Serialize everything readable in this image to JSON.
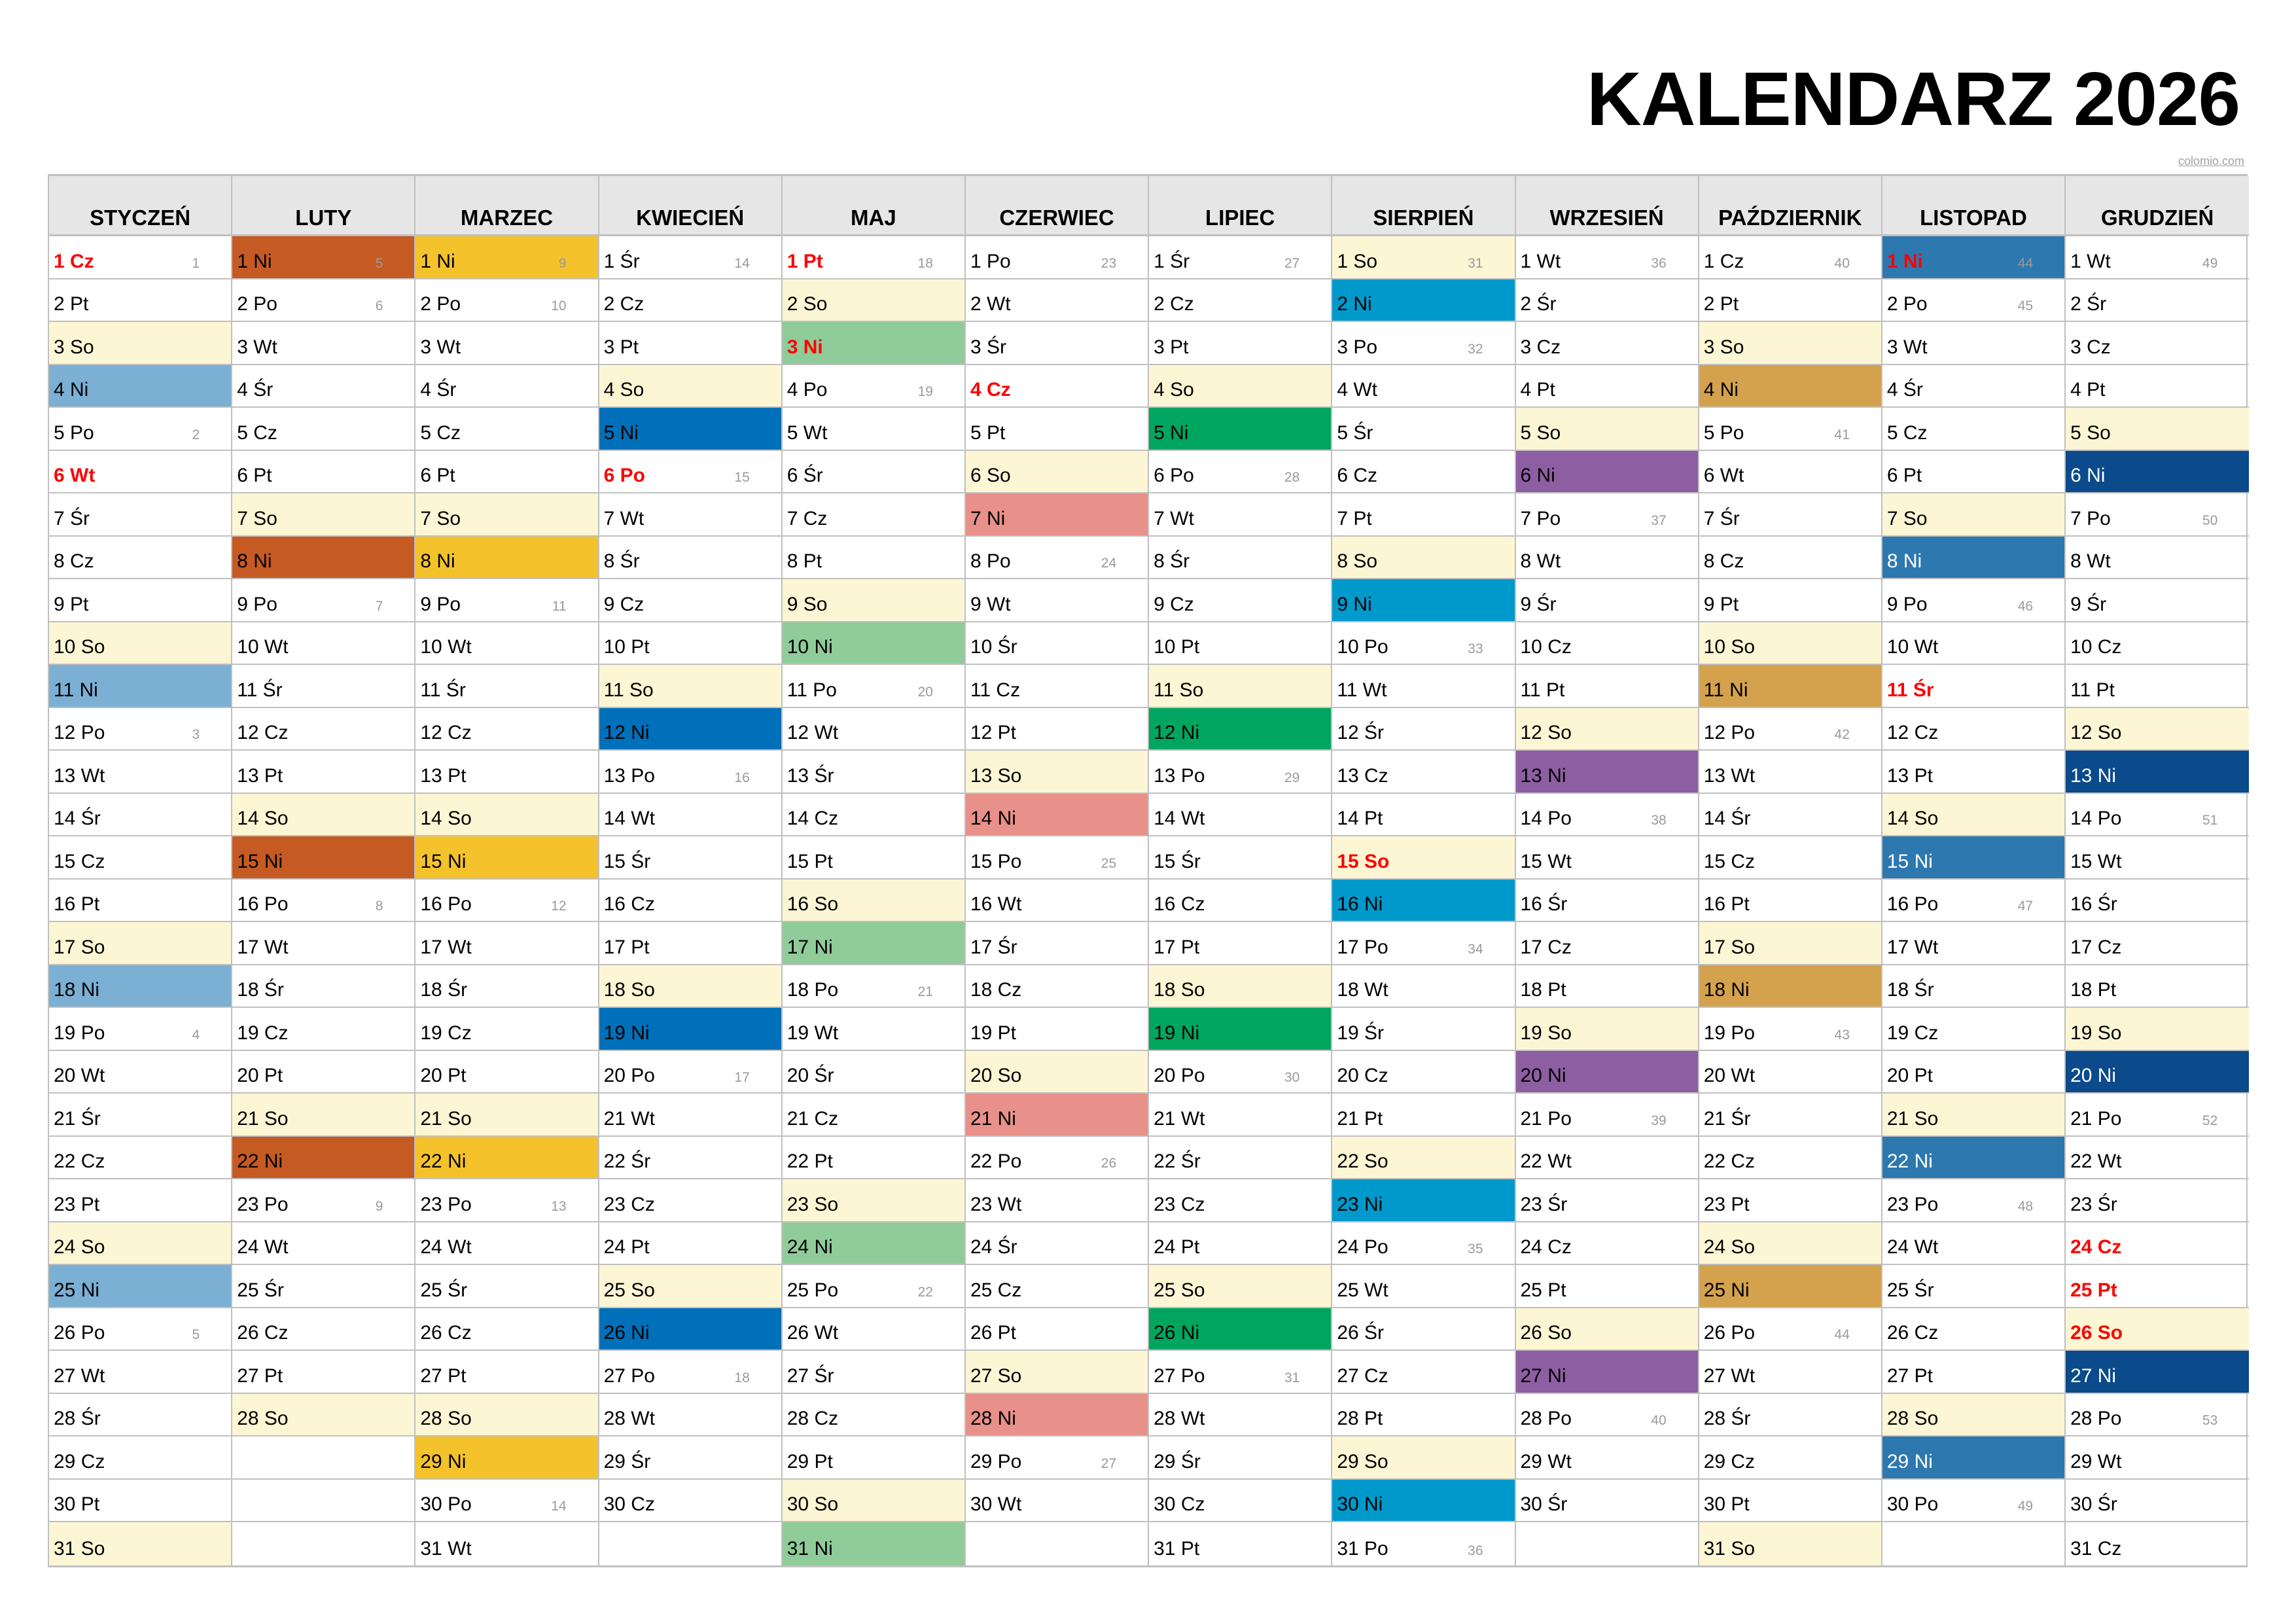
{
  "title": "KALENDARZ 2026",
  "credit": "colomio.com",
  "colors": {
    "saturday": "#fdf6d5",
    "holiday_text": "#ff0000",
    "header_bg": "#e6e6e6",
    "grid": "#c0c0c0",
    "week_number": "#9a9a9a"
  },
  "months": [
    {
      "name": "STYCZEŃ",
      "sunday_color": "#7bafd4",
      "sunday_text": "#000",
      "first_weekday": 4,
      "days": 31,
      "holidays": [
        1,
        6
      ],
      "weeks": {
        "1": "1",
        "5": "2",
        "12": "3",
        "19": "4",
        "26": "5"
      }
    },
    {
      "name": "LUTY",
      "sunday_color": "#c55a22",
      "sunday_text": "#000",
      "first_weekday": 0,
      "days": 28,
      "holidays": [],
      "weeks": {
        "1": "5",
        "2": "6",
        "9": "7",
        "16": "8",
        "23": "9"
      }
    },
    {
      "name": "MARZEC",
      "sunday_color": "#f4c22b",
      "sunday_text": "#000",
      "first_weekday": 0,
      "days": 31,
      "holidays": [],
      "weeks": {
        "1": "9",
        "2": "10",
        "9": "11",
        "16": "12",
        "23": "13",
        "30": "14"
      }
    },
    {
      "name": "KWIECIEŃ",
      "sunday_color": "#0070ba",
      "sunday_text": "#000",
      "first_weekday": 3,
      "days": 30,
      "holidays": [
        6
      ],
      "weeks": {
        "1": "14",
        "6": "15",
        "13": "16",
        "20": "17",
        "27": "18"
      }
    },
    {
      "name": "MAJ",
      "sunday_color": "#90cb9a",
      "sunday_text": "#000",
      "first_weekday": 5,
      "days": 31,
      "holidays": [
        1,
        3
      ],
      "weeks": {
        "1": "18",
        "4": "19",
        "11": "20",
        "18": "21",
        "25": "22"
      }
    },
    {
      "name": "CZERWIEC",
      "sunday_color": "#e8908a",
      "sunday_text": "#000",
      "first_weekday": 1,
      "days": 30,
      "holidays": [
        4
      ],
      "weeks": {
        "1": "23",
        "8": "24",
        "15": "25",
        "22": "26",
        "29": "27"
      }
    },
    {
      "name": "LIPIEC",
      "sunday_color": "#00a65f",
      "sunday_text": "#000",
      "first_weekday": 3,
      "days": 31,
      "holidays": [],
      "weeks": {
        "1": "27",
        "6": "28",
        "13": "29",
        "20": "30",
        "27": "31"
      }
    },
    {
      "name": "SIERPIEŃ",
      "sunday_color": "#0099cc",
      "sunday_text": "#000",
      "first_weekday": 6,
      "days": 31,
      "holidays": [
        15
      ],
      "weeks": {
        "1": "31",
        "3": "32",
        "10": "33",
        "17": "34",
        "24": "35",
        "31": "36"
      }
    },
    {
      "name": "WRZESIEŃ",
      "sunday_color": "#8e5ea2",
      "sunday_text": "#000",
      "first_weekday": 2,
      "days": 30,
      "holidays": [],
      "weeks": {
        "1": "36",
        "7": "37",
        "14": "38",
        "21": "39",
        "28": "40"
      }
    },
    {
      "name": "PAŹDZIERNIK",
      "sunday_color": "#d4a24c",
      "sunday_text": "#000",
      "first_weekday": 4,
      "days": 31,
      "holidays": [],
      "weeks": {
        "1": "40",
        "5": "41",
        "12": "42",
        "19": "43",
        "26": "44"
      }
    },
    {
      "name": "LISTOPAD",
      "sunday_color": "#2e78b0",
      "sunday_text": "#fff",
      "first_weekday": 0,
      "days": 30,
      "holidays": [
        1,
        11
      ],
      "weeks": {
        "1": "44",
        "2": "45",
        "9": "46",
        "16": "47",
        "23": "48",
        "30": "49"
      }
    },
    {
      "name": "GRUDZIEŃ",
      "sunday_color": "#0b4a8b",
      "sunday_text": "#fff",
      "first_weekday": 2,
      "days": 31,
      "holidays": [
        24,
        25,
        26
      ],
      "weeks": {
        "1": "49",
        "7": "50",
        "14": "51",
        "21": "52",
        "28": "53"
      }
    }
  ],
  "weekday_abbr": [
    "Ni",
    "Po",
    "Wt",
    "Śr",
    "Cz",
    "Pt",
    "So"
  ],
  "cells": {}
}
